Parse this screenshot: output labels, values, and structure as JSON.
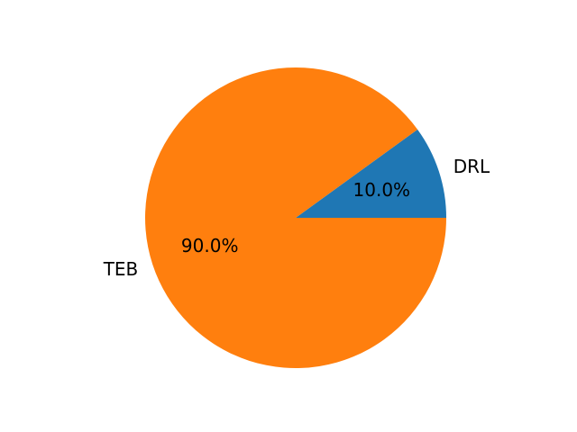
{
  "chart_data": {
    "type": "pie",
    "categories": [
      "DRL",
      "TEB"
    ],
    "values": [
      10.0,
      90.0
    ],
    "percent_labels": [
      "10.0%",
      "90.0%"
    ],
    "colors": [
      "#1f77b4",
      "#ff7f0e"
    ],
    "start_angle_deg": 0,
    "direction": "counterclockwise"
  }
}
